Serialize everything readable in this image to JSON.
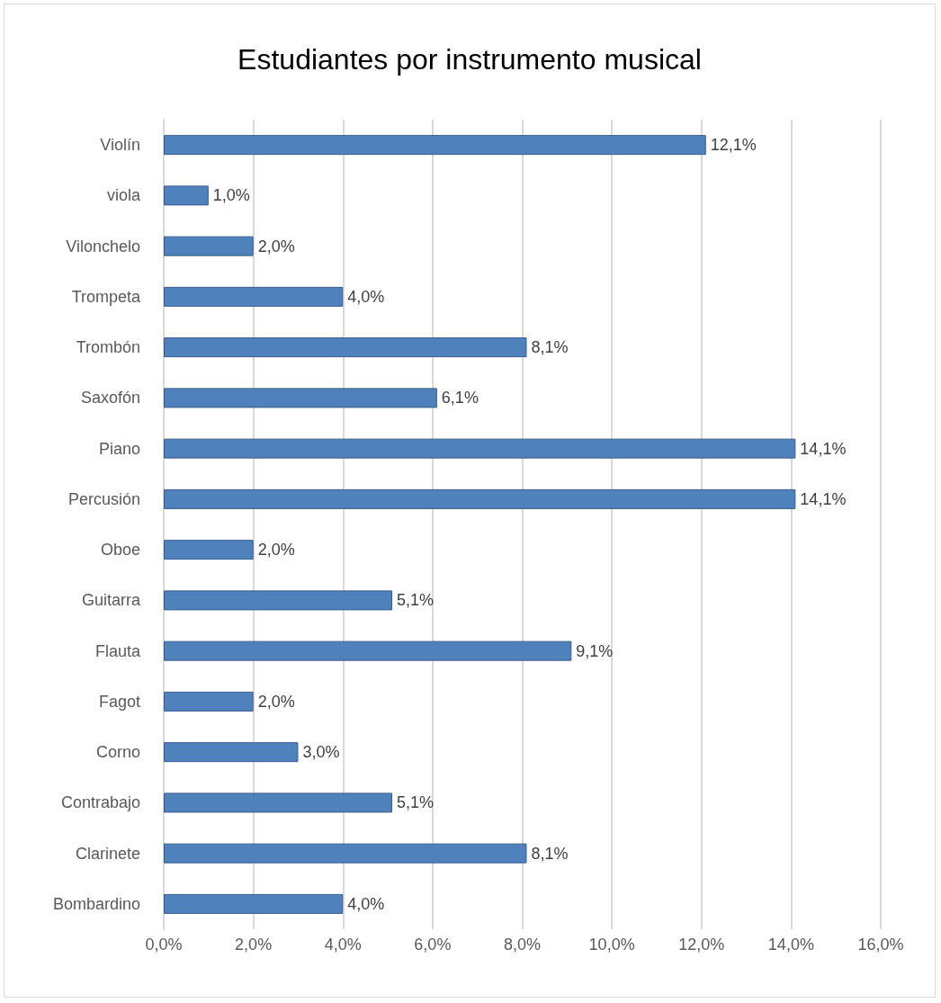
{
  "chart_data": {
    "type": "bar",
    "orientation": "horizontal",
    "title": "Estudiantes por instrumento musical",
    "categories": [
      "Violín",
      "viola",
      "Vilonchelo",
      "Trompeta",
      "Trombón",
      "Saxofón",
      "Piano",
      "Percusión",
      "Oboe",
      "Guitarra",
      "Flauta",
      "Fagot",
      "Corno",
      "Contrabajo",
      "Clarinete",
      "Bombardino"
    ],
    "values": [
      12.1,
      1.0,
      2.0,
      4.0,
      8.1,
      6.1,
      14.1,
      14.1,
      2.0,
      5.1,
      9.1,
      2.0,
      3.0,
      5.1,
      8.1,
      4.0
    ],
    "value_labels": [
      "12,1%",
      "1,0%",
      "2,0%",
      "4,0%",
      "8,1%",
      "6,1%",
      "14,1%",
      "14,1%",
      "2,0%",
      "5,1%",
      "9,1%",
      "2,0%",
      "3,0%",
      "5,1%",
      "8,1%",
      "4,0%"
    ],
    "color": "#4f81bd",
    "xlim": [
      0,
      16
    ],
    "xticks": [
      {
        "value": 0,
        "label": "0,0%"
      },
      {
        "value": 2,
        "label": "2,0%"
      },
      {
        "value": 4,
        "label": "4,0%"
      },
      {
        "value": 6,
        "label": "6,0%"
      },
      {
        "value": 8,
        "label": "8,0%"
      },
      {
        "value": 10,
        "label": "10,0%"
      },
      {
        "value": 12,
        "label": "12,0%"
      },
      {
        "value": 14,
        "label": "14,0%"
      },
      {
        "value": 16,
        "label": "16,0%"
      }
    ],
    "grid": "x"
  }
}
